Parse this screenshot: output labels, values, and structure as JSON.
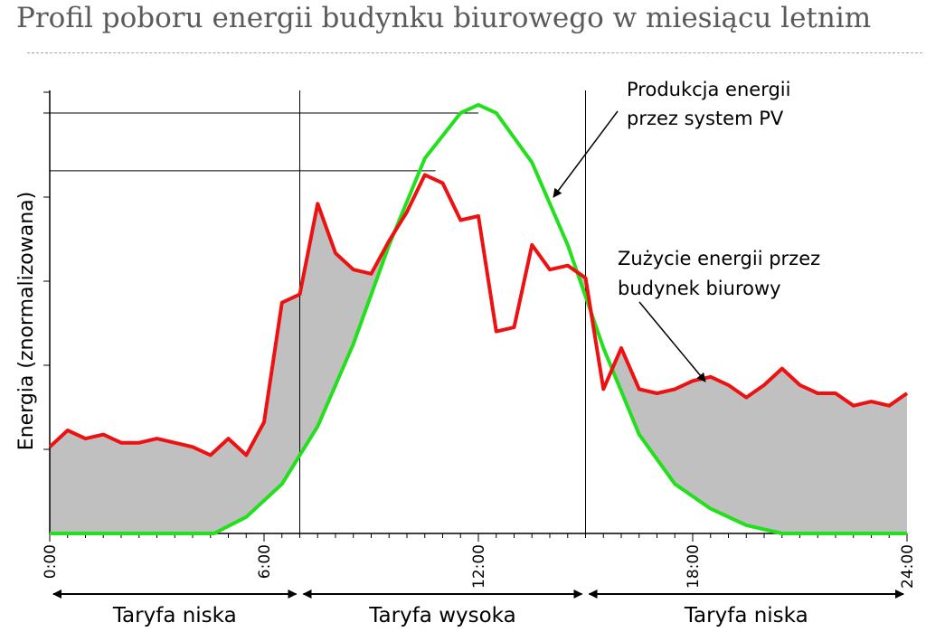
{
  "title": "Profil poboru energii budynku biurowego w miesiącu letnim",
  "chart_data": {
    "type": "line",
    "ylabel": "Energia (znormalizowana)",
    "xlabel": "",
    "x_ticks": [
      "0:00",
      "6:00",
      "12:00",
      "18:00",
      "24:00"
    ],
    "xlim": [
      0,
      24
    ],
    "ylim": [
      0,
      1
    ],
    "colors": {
      "pv": "#22e01c",
      "consumption": "#ee1111",
      "fill": "#c0c0c0"
    },
    "series": [
      {
        "name": "Produkcja energii przez system PV",
        "x": [
          0,
          4.6,
          5.5,
          6.5,
          7.5,
          8.5,
          9.5,
          10.5,
          11.5,
          12,
          12.5,
          13.5,
          14.5,
          15.5,
          16.5,
          17.5,
          18.5,
          19.5,
          20.5,
          24
        ],
        "y": [
          0,
          0,
          0.04,
          0.12,
          0.26,
          0.46,
          0.7,
          0.91,
          1.02,
          1.04,
          1.02,
          0.9,
          0.7,
          0.45,
          0.24,
          0.12,
          0.06,
          0.02,
          0,
          0
        ]
      },
      {
        "name": "Zużycie energii przez budynek biurowy",
        "x": [
          0,
          0.5,
          1,
          1.5,
          2,
          2.5,
          3,
          3.5,
          4,
          4.5,
          5,
          5.5,
          6,
          6.5,
          7,
          7.5,
          8,
          8.5,
          9,
          9.5,
          10,
          10.5,
          11,
          11.5,
          12,
          12.5,
          13,
          13.5,
          14,
          14.5,
          15,
          15.5,
          16,
          16.5,
          17,
          17.5,
          18,
          18.5,
          19,
          19.5,
          20,
          20.5,
          21,
          21.5,
          22,
          22.5,
          23,
          23.5,
          24
        ],
        "y": [
          0.21,
          0.25,
          0.23,
          0.24,
          0.22,
          0.22,
          0.23,
          0.22,
          0.21,
          0.19,
          0.23,
          0.19,
          0.27,
          0.56,
          0.58,
          0.8,
          0.68,
          0.64,
          0.63,
          0.71,
          0.78,
          0.87,
          0.85,
          0.76,
          0.77,
          0.49,
          0.5,
          0.7,
          0.64,
          0.65,
          0.62,
          0.35,
          0.45,
          0.35,
          0.34,
          0.35,
          0.37,
          0.38,
          0.36,
          0.33,
          0.36,
          0.4,
          0.36,
          0.34,
          0.34,
          0.31,
          0.32,
          0.31,
          0.34
        ]
      }
    ],
    "reference_lines": {
      "vertical_x": [
        7,
        15
      ],
      "horizontal_y": [
        1.02,
        0.88
      ]
    },
    "annotations": [
      {
        "line1": "Produkcja energii",
        "line2": "przez system PV"
      },
      {
        "line1": "Zużycie energii przez",
        "line2": "budynek biurowy"
      }
    ],
    "tariffs": [
      {
        "label": "Taryfa niska",
        "from": 0,
        "to": 7
      },
      {
        "label": "Taryfa wysoka",
        "from": 7,
        "to": 15
      },
      {
        "label": "Taryfa niska",
        "from": 15,
        "to": 24
      }
    ]
  }
}
